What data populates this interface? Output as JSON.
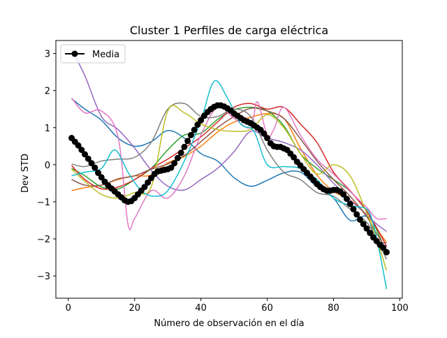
{
  "chart_data": {
    "type": "line",
    "title": "Cluster 1 Perfiles de carga eléctrica",
    "xlabel": "Número de observación en el día",
    "ylabel": "Dev STD",
    "xlim": [
      -3.75,
      100.75
    ],
    "ylim": [
      -3.6,
      3.35
    ],
    "xticks": [
      0,
      20,
      40,
      60,
      80,
      100
    ],
    "xtick_labels": [
      "0",
      "20",
      "40",
      "60",
      "80",
      "100"
    ],
    "yticks": [
      -3,
      -2,
      -1,
      0,
      1,
      2,
      3
    ],
    "ytick_labels": [
      "−3",
      "−2",
      "−1",
      "0",
      "1",
      "2",
      "3"
    ],
    "grid": false,
    "legend": {
      "location": "upper left",
      "entries": [
        "Media"
      ]
    },
    "mean_series": {
      "name": "Media",
      "color": "#000000",
      "marker": "circle",
      "x": [
        1,
        2,
        3,
        4,
        5,
        6,
        7,
        8,
        9,
        10,
        11,
        12,
        13,
        14,
        15,
        16,
        17,
        18,
        19,
        20,
        21,
        22,
        23,
        24,
        25,
        26,
        27,
        28,
        29,
        30,
        31,
        32,
        33,
        34,
        35,
        36,
        37,
        38,
        39,
        40,
        41,
        42,
        43,
        44,
        45,
        46,
        47,
        48,
        49,
        50,
        51,
        52,
        53,
        54,
        55,
        56,
        57,
        58,
        59,
        60,
        61,
        62,
        63,
        64,
        65,
        66,
        67,
        68,
        69,
        70,
        71,
        72,
        73,
        74,
        75,
        76,
        77,
        78,
        79,
        80,
        81,
        82,
        83,
        84,
        85,
        86,
        87,
        88,
        89,
        90,
        91,
        92,
        93,
        94,
        95,
        96
      ],
      "y": [
        0.72,
        0.62,
        0.52,
        0.4,
        0.28,
        0.16,
        0.04,
        -0.08,
        -0.22,
        -0.34,
        -0.46,
        -0.56,
        -0.64,
        -0.72,
        -0.8,
        -0.88,
        -0.96,
        -1.0,
        -0.98,
        -0.9,
        -0.8,
        -0.7,
        -0.6,
        -0.48,
        -0.36,
        -0.25,
        -0.18,
        -0.16,
        -0.14,
        -0.12,
        -0.08,
        0.04,
        0.18,
        0.32,
        0.48,
        0.64,
        0.8,
        0.94,
        1.08,
        1.2,
        1.32,
        1.42,
        1.5,
        1.56,
        1.6,
        1.6,
        1.57,
        1.52,
        1.46,
        1.38,
        1.32,
        1.26,
        1.2,
        1.16,
        1.12,
        1.06,
        1.0,
        0.94,
        0.84,
        0.72,
        0.58,
        0.5,
        0.48,
        0.48,
        0.44,
        0.4,
        0.3,
        0.2,
        0.08,
        -0.02,
        -0.12,
        -0.22,
        -0.32,
        -0.42,
        -0.52,
        -0.6,
        -0.66,
        -0.7,
        -0.7,
        -0.68,
        -0.68,
        -0.72,
        -0.8,
        -0.92,
        -1.06,
        -1.2,
        -1.34,
        -1.48,
        -1.6,
        -1.72,
        -1.84,
        -1.96,
        -2.06,
        -2.16,
        -2.24,
        -2.36
      ]
    },
    "series": [
      {
        "color": "#1f77b4",
        "x": [
          1,
          5,
          10,
          15,
          20,
          25,
          30,
          35,
          40,
          45,
          50,
          55,
          60,
          65,
          70,
          75,
          80,
          85,
          90,
          93,
          96
        ],
        "y": [
          1.78,
          1.5,
          1.2,
          0.72,
          0.5,
          0.62,
          0.92,
          0.72,
          0.3,
          0.1,
          -0.35,
          -0.58,
          -0.42,
          -0.22,
          -0.2,
          -0.6,
          -0.9,
          -1.5,
          -1.4,
          -2.05,
          -2.1
        ]
      },
      {
        "color": "#ff7f0e",
        "x": [
          1,
          5,
          10,
          15,
          20,
          25,
          30,
          35,
          40,
          45,
          50,
          55,
          60,
          65,
          70,
          75,
          80,
          85,
          90,
          93,
          96
        ],
        "y": [
          -0.7,
          -0.62,
          -0.55,
          -0.4,
          -0.3,
          -0.28,
          0.05,
          0.22,
          0.5,
          0.88,
          1.15,
          1.28,
          1.38,
          1.25,
          0.45,
          -0.28,
          -0.72,
          -0.95,
          -1.35,
          -1.72,
          -2.1
        ]
      },
      {
        "color": "#2ca02c",
        "x": [
          1,
          5,
          10,
          15,
          20,
          25,
          30,
          35,
          40,
          45,
          50,
          55,
          60,
          65,
          70,
          75,
          80,
          85,
          90,
          93,
          96
        ],
        "y": [
          -0.1,
          -0.3,
          -0.6,
          -0.65,
          -0.4,
          -0.1,
          0.4,
          0.8,
          0.85,
          1.22,
          1.48,
          1.55,
          1.45,
          1.05,
          0.3,
          -0.1,
          -0.4,
          -0.72,
          -1.25,
          -1.75,
          -2.4
        ]
      },
      {
        "color": "#d62728",
        "x": [
          1,
          5,
          10,
          15,
          20,
          25,
          30,
          35,
          40,
          45,
          50,
          55,
          60,
          65,
          70,
          75,
          80,
          85,
          90,
          93,
          96
        ],
        "y": [
          -0.02,
          -0.4,
          -0.65,
          -0.6,
          -0.4,
          -0.1,
          0.15,
          0.45,
          0.75,
          1.15,
          1.55,
          1.65,
          1.5,
          1.55,
          1.1,
          0.6,
          -0.2,
          -0.7,
          -1.25,
          -1.7,
          -2.2
        ]
      },
      {
        "color": "#9467bd",
        "x": [
          1,
          5,
          10,
          15,
          20,
          25,
          30,
          35,
          40,
          45,
          50,
          55,
          60,
          65,
          70,
          75,
          80,
          85,
          90,
          93,
          96
        ],
        "y": [
          3.1,
          2.4,
          1.3,
          0.95,
          0.45,
          -0.15,
          -0.58,
          -0.68,
          -0.4,
          -0.1,
          0.35,
          0.9,
          0.72,
          0.6,
          0.4,
          0.0,
          -0.5,
          -0.95,
          -1.35,
          -1.6,
          -1.8
        ]
      },
      {
        "color": "#8c564b",
        "x": [
          1,
          5,
          10,
          15,
          20,
          25,
          30,
          35,
          40,
          45,
          50,
          55,
          60,
          65,
          70,
          75,
          80,
          85,
          90,
          93,
          96
        ],
        "y": [
          -0.4,
          -0.55,
          -0.55,
          -0.38,
          -0.3,
          -0.12,
          0.02,
          0.25,
          0.62,
          1.0,
          1.3,
          1.52,
          1.45,
          1.25,
          0.7,
          0.1,
          -0.4,
          -0.85,
          -1.4,
          -1.85,
          -2.3
        ]
      },
      {
        "color": "#e377c2",
        "x": [
          1,
          5,
          10,
          15,
          18,
          20,
          25,
          30,
          35,
          40,
          45,
          50,
          55,
          57,
          60,
          62,
          65,
          70,
          75,
          80,
          85,
          90,
          93,
          96
        ],
        "y": [
          1.8,
          1.4,
          1.45,
          0.75,
          -1.6,
          -1.45,
          -0.7,
          -0.9,
          -0.3,
          0.8,
          1.55,
          1.25,
          1.0,
          1.7,
          0.8,
          0.95,
          1.55,
          0.8,
          0.15,
          -0.25,
          -0.72,
          -1.15,
          -1.45,
          -1.45
        ]
      },
      {
        "color": "#7f7f7f",
        "x": [
          1,
          5,
          10,
          15,
          20,
          25,
          30,
          35,
          40,
          45,
          50,
          55,
          60,
          65,
          70,
          75,
          80,
          85,
          90,
          93,
          96
        ],
        "y": [
          0.02,
          -0.05,
          0.1,
          0.15,
          0.2,
          0.6,
          1.5,
          1.65,
          1.3,
          1.3,
          1.5,
          1.3,
          0.4,
          -0.2,
          -0.4,
          -0.75,
          -0.85,
          -1.2,
          -1.55,
          -2.0,
          -2.55
        ]
      },
      {
        "color": "#bcbd22",
        "x": [
          1,
          5,
          10,
          15,
          20,
          25,
          30,
          35,
          40,
          45,
          50,
          55,
          60,
          65,
          70,
          75,
          80,
          85,
          90,
          93,
          96
        ],
        "y": [
          -0.12,
          -0.45,
          -0.8,
          -0.9,
          -0.75,
          -0.6,
          1.45,
          1.4,
          1.1,
          0.95,
          0.9,
          0.95,
          1.35,
          1.0,
          0.3,
          -0.25,
          0.0,
          -0.3,
          -1.3,
          -2.0,
          -2.85
        ]
      },
      {
        "color": "#17becf",
        "x": [
          1,
          5,
          10,
          14,
          18,
          22,
          26,
          30,
          35,
          40,
          44,
          48,
          52,
          56,
          60,
          65,
          70,
          75,
          80,
          85,
          90,
          92,
          94,
          96
        ],
        "y": [
          -0.3,
          -0.2,
          -0.1,
          0.4,
          -0.2,
          -0.7,
          -0.85,
          -0.7,
          0.1,
          1.2,
          2.25,
          1.8,
          1.1,
          0.9,
          0.0,
          -0.05,
          -0.1,
          -0.4,
          -0.9,
          -1.1,
          -1.2,
          -1.6,
          -2.4,
          -3.35
        ]
      }
    ]
  }
}
